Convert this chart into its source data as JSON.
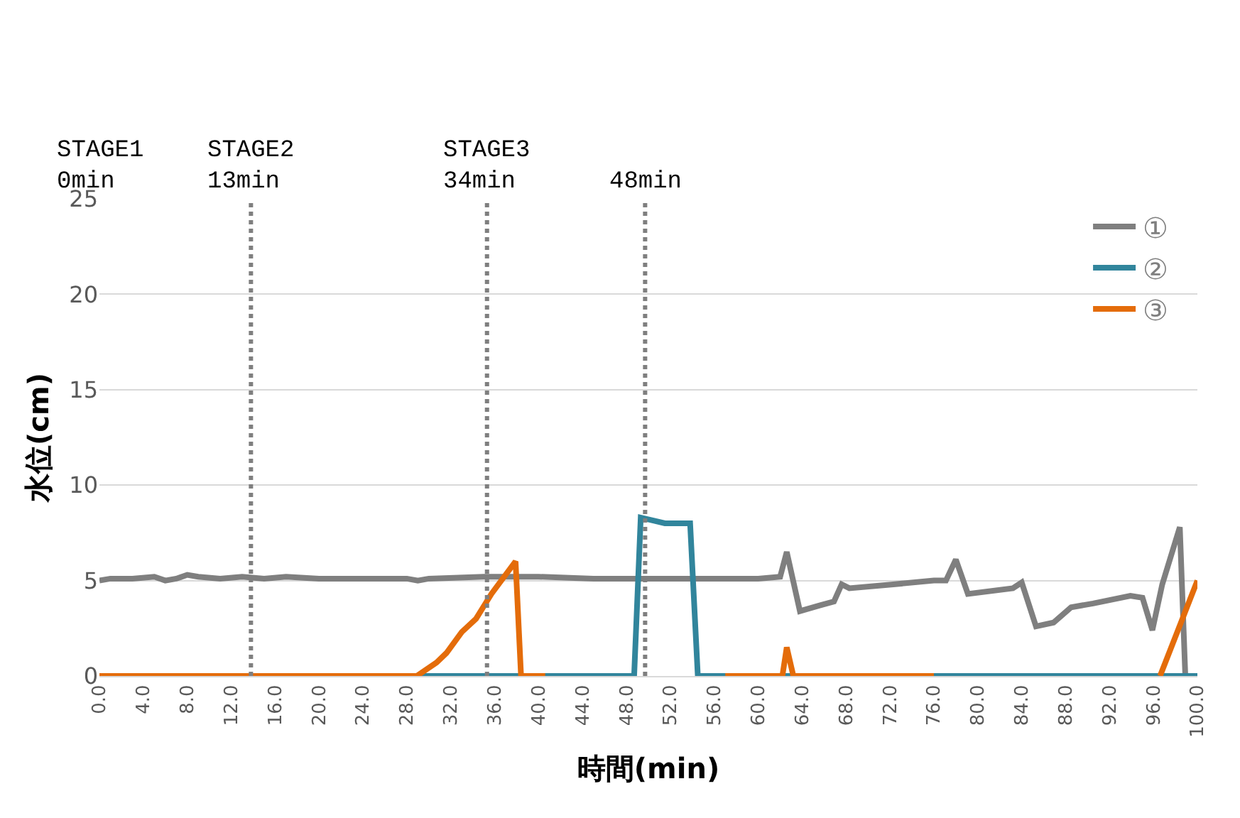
{
  "chart_data": {
    "type": "line",
    "xlabel": "時間(min)",
    "ylabel": "水位(cm)",
    "xlim": [
      0,
      100
    ],
    "ylim": [
      0,
      25
    ],
    "yticks": [
      0,
      5,
      10,
      15,
      20,
      25
    ],
    "xticks": [
      {
        "value": 0,
        "label": "0.0"
      },
      {
        "value": 4,
        "label": "4.0"
      },
      {
        "value": 8,
        "label": "8.0"
      },
      {
        "value": 12,
        "label": "12.0"
      },
      {
        "value": 16,
        "label": "16.0"
      },
      {
        "value": 20,
        "label": "20.0"
      },
      {
        "value": 24,
        "label": "24.0"
      },
      {
        "value": 28,
        "label": "28.0"
      },
      {
        "value": 32,
        "label": "32.0"
      },
      {
        "value": 36,
        "label": "36.0"
      },
      {
        "value": 40,
        "label": "40.0"
      },
      {
        "value": 44,
        "label": "44.0"
      },
      {
        "value": 48,
        "label": "48.0"
      },
      {
        "value": 52,
        "label": "52.0"
      },
      {
        "value": 56,
        "label": "56.0"
      },
      {
        "value": 60,
        "label": "60.0"
      },
      {
        "value": 64,
        "label": "64.0"
      },
      {
        "value": 68,
        "label": "68.0"
      },
      {
        "value": 72,
        "label": "72.0"
      },
      {
        "value": 76,
        "label": "76.0"
      },
      {
        "value": 80,
        "label": "80.0"
      },
      {
        "value": 84,
        "label": "84.0"
      },
      {
        "value": 88,
        "label": "88.0"
      },
      {
        "value": 92,
        "label": "92.0"
      },
      {
        "value": 96,
        "label": "96.0"
      },
      {
        "value": 100,
        "label": "100.0"
      }
    ],
    "grid": "y",
    "legend": "top right",
    "marker": "none",
    "line_style": "solid",
    "series": [
      {
        "name": "①",
        "color": "#7f7f7f",
        "x": [
          0,
          1,
          3,
          5,
          6,
          7,
          8,
          9,
          11,
          13,
          15,
          17,
          20,
          25,
          28,
          29,
          30,
          35,
          40,
          45,
          50,
          55,
          60,
          62,
          62.6,
          63.8,
          65.6,
          66.9,
          67.6,
          68.3,
          72.3,
          76,
          77.1,
          78,
          79.1,
          83.2,
          84,
          85.3,
          86.9,
          88.5,
          90.5,
          93.9,
          95,
          95.9,
          96.8,
          98.4,
          98.9
        ],
        "values": [
          5.0,
          5.1,
          5.1,
          5.2,
          5.0,
          5.1,
          5.3,
          5.2,
          5.1,
          5.2,
          5.1,
          5.2,
          5.1,
          5.1,
          5.1,
          5.0,
          5.1,
          5.2,
          5.2,
          5.1,
          5.1,
          5.1,
          5.1,
          5.2,
          6.5,
          3.4,
          3.7,
          3.9,
          4.8,
          4.6,
          4.8,
          5.0,
          5.0,
          6.1,
          4.3,
          4.6,
          4.9,
          2.6,
          2.8,
          3.6,
          3.8,
          4.2,
          4.1,
          2.4,
          4.8,
          7.8,
          0
        ]
      },
      {
        "name": "②",
        "color": "#31859c",
        "x": [
          0,
          48.7,
          49.3,
          51.5,
          53.8,
          54.5,
          100
        ],
        "values": [
          0,
          0,
          8.3,
          8.0,
          8.0,
          0,
          0
        ]
      },
      {
        "name": "③",
        "color": "#e46c0a",
        "x": [
          0,
          28.9,
          30.7,
          31.6,
          33.0,
          34.3,
          35.7,
          37.9,
          38.4,
          40.6,
          41,
          57,
          62.2,
          62.6,
          63.2,
          67.5,
          76,
          77,
          96.6,
          100
        ],
        "values": [
          0,
          0,
          0.7,
          1.2,
          2.3,
          3.0,
          4.3,
          6.0,
          0,
          0,
          null,
          0,
          0,
          1.5,
          0,
          0,
          0,
          null,
          0,
          5.0
        ]
      }
    ],
    "ref_lines": [
      {
        "axis": "x",
        "value": 13.8,
        "label": "STAGE2\n13min",
        "color": "#7f7f7f",
        "line_style": "dotted"
      },
      {
        "axis": "x",
        "value": 35.3,
        "label": "STAGE3\n34min",
        "color": "#7f7f7f",
        "line_style": "dotted"
      },
      {
        "axis": "x",
        "value": 49.7,
        "label": "48min",
        "color": "#7f7f7f",
        "line_style": "dotted"
      }
    ],
    "annotations": [
      "STAGE1\n0min"
    ]
  }
}
